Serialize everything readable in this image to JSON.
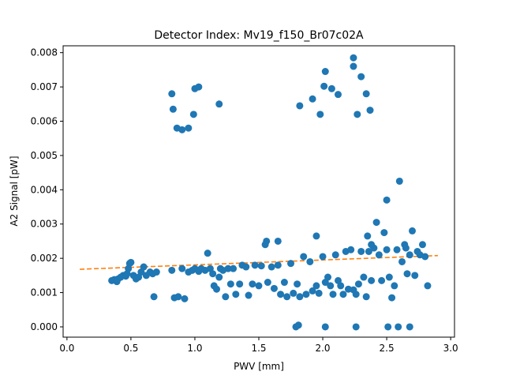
{
  "chart_data": {
    "type": "scatter",
    "title": "Detector Index: Mv19_f150_Br07c02A",
    "xlabel": "PWV [mm]",
    "ylabel": "A2 Signal [pW]",
    "xlim": [
      -0.03,
      3.03
    ],
    "ylim": [
      -0.0003,
      0.0082
    ],
    "xticks": [
      0.0,
      0.5,
      1.0,
      1.5,
      2.0,
      2.5,
      3.0
    ],
    "xtick_labels": [
      "0.0",
      "0.5",
      "1.0",
      "1.5",
      "2.0",
      "2.5",
      "3.0"
    ],
    "yticks": [
      0.0,
      0.001,
      0.002,
      0.003,
      0.004,
      0.005,
      0.006,
      0.007,
      0.008
    ],
    "ytick_labels": [
      "0.000",
      "0.001",
      "0.002",
      "0.003",
      "0.004",
      "0.005",
      "0.006",
      "0.007",
      "0.008"
    ],
    "grid": false,
    "colors": {
      "points": "#1f77b4",
      "fit": "#ff7f0e"
    },
    "series": [
      {
        "name": "measurements",
        "kind": "scatter",
        "points": [
          [
            0.35,
            0.00135
          ],
          [
            0.37,
            0.00138
          ],
          [
            0.39,
            0.00132
          ],
          [
            0.4,
            0.0014
          ],
          [
            0.42,
            0.00145
          ],
          [
            0.44,
            0.0015
          ],
          [
            0.46,
            0.00148
          ],
          [
            0.47,
            0.00155
          ],
          [
            0.48,
            0.0017
          ],
          [
            0.49,
            0.00185
          ],
          [
            0.5,
            0.00188
          ],
          [
            0.52,
            0.0015
          ],
          [
            0.54,
            0.0014
          ],
          [
            0.56,
            0.00145
          ],
          [
            0.58,
            0.0016
          ],
          [
            0.6,
            0.00175
          ],
          [
            0.62,
            0.0015
          ],
          [
            0.65,
            0.0016
          ],
          [
            0.67,
            0.00155
          ],
          [
            0.7,
            0.0016
          ],
          [
            0.68,
            0.00088
          ],
          [
            0.82,
            0.00165
          ],
          [
            0.84,
            0.00085
          ],
          [
            0.87,
            0.00088
          ],
          [
            0.9,
            0.0017
          ],
          [
            0.92,
            0.00082
          ],
          [
            0.95,
            0.0016
          ],
          [
            0.98,
            0.00165
          ],
          [
            1.0,
            0.0017
          ],
          [
            1.03,
            0.00162
          ],
          [
            1.05,
            0.0017
          ],
          [
            1.08,
            0.00165
          ],
          [
            1.1,
            0.00215
          ],
          [
            1.12,
            0.0017
          ],
          [
            1.14,
            0.00155
          ],
          [
            1.15,
            0.0012
          ],
          [
            1.17,
            0.0011
          ],
          [
            1.19,
            0.00145
          ],
          [
            1.2,
            0.0017
          ],
          [
            1.22,
            0.00165
          ],
          [
            1.24,
            0.00088
          ],
          [
            1.26,
            0.0017
          ],
          [
            1.28,
            0.00125
          ],
          [
            1.3,
            0.0017
          ],
          [
            1.32,
            0.00095
          ],
          [
            1.35,
            0.00125
          ],
          [
            1.37,
            0.0018
          ],
          [
            1.4,
            0.00175
          ],
          [
            1.42,
            0.00092
          ],
          [
            1.45,
            0.00125
          ],
          [
            1.47,
            0.0018
          ],
          [
            1.5,
            0.0012
          ],
          [
            1.52,
            0.00178
          ],
          [
            1.55,
            0.0024
          ],
          [
            1.57,
            0.0013
          ],
          [
            1.6,
            0.00175
          ],
          [
            1.62,
            0.00112
          ],
          [
            1.65,
            0.0018
          ],
          [
            1.67,
            0.00095
          ],
          [
            1.7,
            0.0013
          ],
          [
            1.72,
            0.00088
          ],
          [
            1.75,
            0.00185
          ],
          [
            1.77,
            0.00098
          ],
          [
            1.8,
            0.00125
          ],
          [
            1.82,
            0.00088
          ],
          [
            1.85,
            0.00205
          ],
          [
            1.87,
            0.00095
          ],
          [
            1.9,
            0.0019
          ],
          [
            1.92,
            0.00105
          ],
          [
            1.95,
            0.0012
          ],
          [
            1.97,
            0.00098
          ],
          [
            2.0,
            0.00205
          ],
          [
            2.02,
            0.0013
          ],
          [
            2.04,
            0.00145
          ],
          [
            2.06,
            0.0012
          ],
          [
            2.08,
            0.00095
          ],
          [
            2.1,
            0.0021
          ],
          [
            2.12,
            0.00135
          ],
          [
            2.14,
            0.0012
          ],
          [
            2.16,
            0.00095
          ],
          [
            2.18,
            0.0022
          ],
          [
            2.2,
            0.0011
          ],
          [
            2.22,
            0.00225
          ],
          [
            2.24,
            0.00108
          ],
          [
            2.26,
            0.00095
          ],
          [
            2.28,
            0.00125
          ],
          [
            2.3,
            0.0022
          ],
          [
            2.32,
            0.00145
          ],
          [
            2.34,
            0.00088
          ],
          [
            2.36,
            0.0022
          ],
          [
            2.38,
            0.00135
          ],
          [
            2.4,
            0.0023
          ],
          [
            2.42,
            0.00305
          ],
          [
            2.44,
            0.0021
          ],
          [
            2.46,
            0.00135
          ],
          [
            2.48,
            0.00275
          ],
          [
            2.5,
            0.00225
          ],
          [
            2.52,
            0.00145
          ],
          [
            2.54,
            0.00085
          ],
          [
            2.56,
            0.0012
          ],
          [
            2.58,
            0.00225
          ],
          [
            2.6,
            0.00425
          ],
          [
            2.62,
            0.0019
          ],
          [
            2.64,
            0.0024
          ],
          [
            2.66,
            0.00155
          ],
          [
            2.68,
            0.0021
          ],
          [
            2.7,
            0.0028
          ],
          [
            2.72,
            0.0015
          ],
          [
            2.74,
            0.0022
          ],
          [
            2.76,
            0.0021
          ],
          [
            2.78,
            0.0024
          ],
          [
            2.8,
            0.00205
          ],
          [
            2.82,
            0.0012
          ],
          [
            1.56,
            0.0025
          ],
          [
            1.65,
            0.0025
          ],
          [
            1.95,
            0.00265
          ],
          [
            2.35,
            0.00265
          ],
          [
            2.5,
            0.0037
          ],
          [
            2.38,
            0.0024
          ],
          [
            2.65,
            0.0023
          ],
          [
            0.82,
            0.0068
          ],
          [
            0.83,
            0.00635
          ],
          [
            0.86,
            0.0058
          ],
          [
            0.9,
            0.00575
          ],
          [
            0.95,
            0.0058
          ],
          [
            0.99,
            0.0062
          ],
          [
            1.0,
            0.00695
          ],
          [
            1.03,
            0.007
          ],
          [
            1.19,
            0.0065
          ],
          [
            1.82,
            0.00645
          ],
          [
            1.92,
            0.00665
          ],
          [
            1.98,
            0.0062
          ],
          [
            2.01,
            0.00702
          ],
          [
            2.02,
            0.00745
          ],
          [
            2.07,
            0.00695
          ],
          [
            2.12,
            0.00678
          ],
          [
            2.24,
            0.00785
          ],
          [
            2.24,
            0.0076
          ],
          [
            2.27,
            0.0062
          ],
          [
            2.3,
            0.0073
          ],
          [
            2.34,
            0.0068
          ],
          [
            2.37,
            0.00632
          ],
          [
            1.79,
            0.0
          ],
          [
            1.81,
            5e-05
          ],
          [
            2.02,
            0.0
          ],
          [
            2.26,
            0.0
          ],
          [
            2.51,
            0.0
          ],
          [
            2.59,
            0.0
          ],
          [
            2.68,
            0.0
          ]
        ]
      },
      {
        "name": "fit",
        "kind": "line",
        "style": "dashed",
        "x": [
          0.1,
          2.9
        ],
        "y": [
          0.00168,
          0.00208
        ]
      }
    ]
  }
}
